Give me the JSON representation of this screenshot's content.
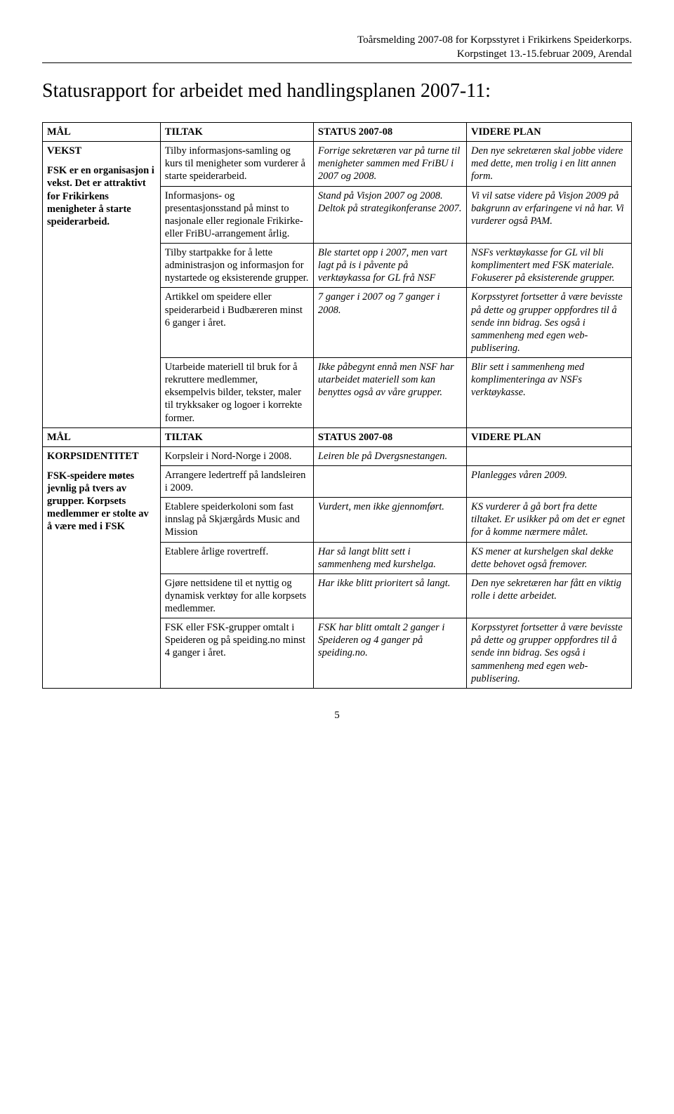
{
  "meta": {
    "line1": "Toårsmelding 2007-08 for Korpsstyret i Frikirkens Speiderkorps.",
    "line2": "Korpstinget 13.-15.februar 2009, Arendal"
  },
  "title": "Statusrapport for arbeidet med handlingsplanen 2007-11:",
  "headers": {
    "goal": "MÅL",
    "action": "TILTAK",
    "status": "STATUS 2007-08",
    "plan": "VIDERE PLAN"
  },
  "sections": [
    {
      "goal_title": "VEKST",
      "goal_desc": "FSK er en organisasjon i vekst. Det er attraktivt for Frikirkens menigheter å starte speiderarbeid.",
      "rows": [
        {
          "action": "Tilby informasjons-samling og kurs til menigheter som vurderer å starte speiderarbeid.",
          "status": "Forrige sekretæren var på turne til menigheter sammen med FriBU i 2007 og 2008.",
          "plan": "Den nye sekretæren skal jobbe videre med dette, men trolig i en litt annen form."
        },
        {
          "action": "Informasjons- og presentasjonsstand på minst to nasjonale eller regionale Frikirke- eller FriBU-arrangement årlig.",
          "status": "Stand på Visjon 2007 og 2008. Deltok på strategikonferanse 2007.",
          "plan": "Vi vil satse videre på Visjon 2009 på bakgrunn av erfaringene vi nå har. Vi vurderer også PAM."
        },
        {
          "action": "Tilby startpakke for å lette administrasjon og informasjon for nystartede og eksisterende grupper.",
          "status": "Ble startet opp i 2007, men vart lagt på is i påvente på verktøykassa for GL frå NSF",
          "plan": "NSFs verktøykasse for GL vil bli komplimentert med FSK materiale. Fokuserer på eksisterende grupper."
        },
        {
          "action": "Artikkel om speidere eller speiderarbeid i Budbæreren minst 6 ganger i året.",
          "status": "7 ganger i 2007 og 7 ganger i 2008.",
          "plan": "Korpsstyret fortsetter å være bevisste på dette og grupper oppfordres til å sende inn bidrag. Ses også i sammenheng med egen web-publisering."
        },
        {
          "action": "Utarbeide materiell til bruk for å rekruttere medlemmer, eksempelvis bilder, tekster, maler til trykksaker og logoer i korrekte former.",
          "status": "Ikke påbegynt ennå men NSF har utarbeidet materiell som kan benyttes også av våre grupper.",
          "plan": "Blir sett i sammenheng med komplimenteringa av NSFs verktøykasse."
        }
      ]
    },
    {
      "goal_title": "KORPSIDENTITET",
      "goal_desc": "FSK-speidere møtes jevnlig på tvers av grupper. Korpsets medlemmer er stolte av å være med i FSK",
      "rows": [
        {
          "action": "Korpsleir i Nord-Norge i 2008.",
          "status": "Leiren ble på Dvergsnestangen.",
          "plan": ""
        },
        {
          "action": "Arrangere ledertreff på landsleiren i 2009.",
          "status": "",
          "plan": "Planlegges våren 2009."
        },
        {
          "action": "Etablere speiderkoloni som fast innslag på Skjærgårds Music and Mission",
          "status": "Vurdert, men ikke gjennomført.",
          "plan": "KS vurderer å gå bort fra dette tiltaket. Er usikker på om det er egnet for å komme nærmere målet."
        },
        {
          "action": "Etablere årlige rovertreff.",
          "status": "Har så langt blitt sett i sammenheng med kurshelga.",
          "plan": "KS mener at kurshelgen skal dekke dette behovet også fremover."
        },
        {
          "action": "Gjøre nettsidene til et nyttig og dynamisk verktøy for alle korpsets medlemmer.",
          "status": "Har ikke blitt prioritert så langt.",
          "plan": "Den nye sekretæren har fått en viktig rolle i dette arbeidet."
        },
        {
          "action": "FSK eller FSK-grupper omtalt i Speideren og på speiding.no minst 4 ganger i året.",
          "status": "FSK har blitt omtalt 2 ganger i Speideren og 4 ganger på speiding.no.",
          "plan": "Korpsstyret fortsetter å være bevisste på dette og grupper oppfordres til å sende inn bidrag. Ses også i sammenheng med egen web-publisering."
        }
      ]
    }
  ],
  "page_number": "5"
}
